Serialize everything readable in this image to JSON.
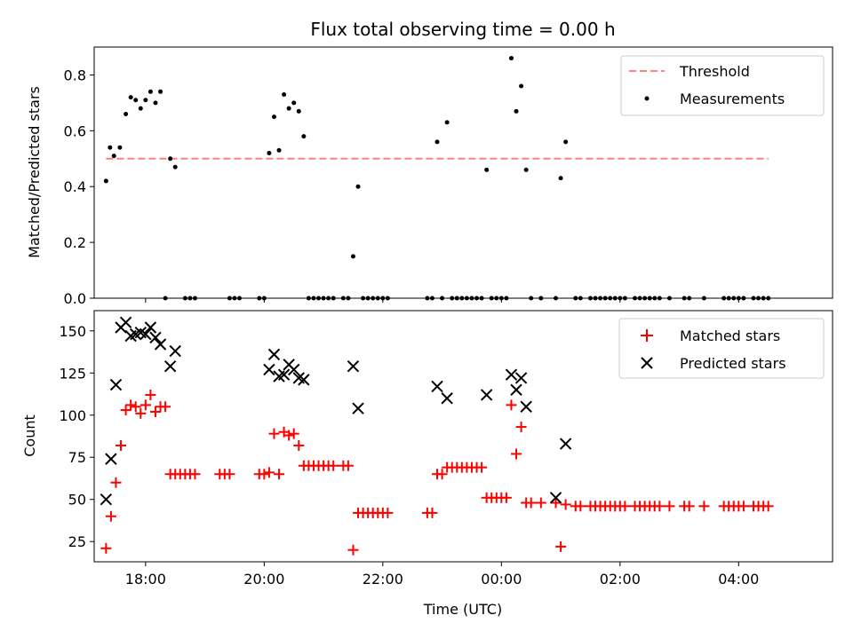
{
  "chart_data": [
    {
      "type": "scatter",
      "title": "Flux total observing time = 0.00 h",
      "xlabel": "",
      "ylabel": "Matched/Predicted stars",
      "xlim": [
        "17:08",
        "05:35"
      ],
      "ylim": [
        0,
        0.9
      ],
      "yticks": [
        "0.0",
        "0.2",
        "0.4",
        "0.6",
        "0.8"
      ],
      "legend_position": "top-right",
      "threshold": {
        "name": "Threshold",
        "value": 0.5,
        "x_range": [
          "17:20",
          "04:30"
        ],
        "color": "#ff7f7f",
        "style": "dashed"
      },
      "series": [
        {
          "name": "Measurements",
          "color": "#000000",
          "points": [
            [
              "17:20",
              0.42
            ],
            [
              "17:24",
              0.54
            ],
            [
              "17:28",
              0.51
            ],
            [
              "17:34",
              0.54
            ],
            [
              "17:40",
              0.66
            ],
            [
              "17:45",
              0.72
            ],
            [
              "17:50",
              0.71
            ],
            [
              "17:55",
              0.68
            ],
            [
              "18:00",
              0.71
            ],
            [
              "18:05",
              0.74
            ],
            [
              "18:10",
              0.7
            ],
            [
              "18:15",
              0.74
            ],
            [
              "18:20",
              0.0
            ],
            [
              "18:25",
              0.5
            ],
            [
              "18:30",
              0.47
            ],
            [
              "18:40",
              0.0
            ],
            [
              "18:45",
              0.0
            ],
            [
              "18:50",
              0.0
            ],
            [
              "19:25",
              0.0
            ],
            [
              "19:30",
              0.0
            ],
            [
              "19:35",
              0.0
            ],
            [
              "19:55",
              0.0
            ],
            [
              "20:00",
              0.0
            ],
            [
              "20:05",
              0.52
            ],
            [
              "20:10",
              0.65
            ],
            [
              "20:15",
              0.53
            ],
            [
              "20:20",
              0.73
            ],
            [
              "20:25",
              0.68
            ],
            [
              "20:30",
              0.7
            ],
            [
              "20:35",
              0.67
            ],
            [
              "20:40",
              0.58
            ],
            [
              "20:45",
              0.0
            ],
            [
              "20:50",
              0.0
            ],
            [
              "20:55",
              0.0
            ],
            [
              "21:00",
              0.0
            ],
            [
              "21:05",
              0.0
            ],
            [
              "21:10",
              0.0
            ],
            [
              "21:20",
              0.0
            ],
            [
              "21:25",
              0.0
            ],
            [
              "21:30",
              0.15
            ],
            [
              "21:35",
              0.4
            ],
            [
              "21:40",
              0.0
            ],
            [
              "21:45",
              0.0
            ],
            [
              "21:50",
              0.0
            ],
            [
              "21:55",
              0.0
            ],
            [
              "22:00",
              0.0
            ],
            [
              "22:05",
              0.0
            ],
            [
              "22:45",
              0.0
            ],
            [
              "22:50",
              0.0
            ],
            [
              "22:55",
              0.56
            ],
            [
              "23:00",
              0.0
            ],
            [
              "23:05",
              0.63
            ],
            [
              "23:10",
              0.0
            ],
            [
              "23:15",
              0.0
            ],
            [
              "23:20",
              0.0
            ],
            [
              "23:25",
              0.0
            ],
            [
              "23:30",
              0.0
            ],
            [
              "23:35",
              0.0
            ],
            [
              "23:40",
              0.0
            ],
            [
              "23:45",
              0.46
            ],
            [
              "23:50",
              0.0
            ],
            [
              "23:55",
              0.0
            ],
            [
              "00:00",
              0.0
            ],
            [
              "00:05",
              0.0
            ],
            [
              "00:10",
              0.86
            ],
            [
              "00:15",
              0.67
            ],
            [
              "00:20",
              0.76
            ],
            [
              "00:25",
              0.46
            ],
            [
              "00:30",
              0.0
            ],
            [
              "00:40",
              0.0
            ],
            [
              "00:55",
              0.0
            ],
            [
              "01:00",
              0.43
            ],
            [
              "01:05",
              0.56
            ],
            [
              "01:15",
              0.0
            ],
            [
              "01:20",
              0.0
            ],
            [
              "01:30",
              0.0
            ],
            [
              "01:35",
              0.0
            ],
            [
              "01:40",
              0.0
            ],
            [
              "01:45",
              0.0
            ],
            [
              "01:50",
              0.0
            ],
            [
              "01:55",
              0.0
            ],
            [
              "02:00",
              0.0
            ],
            [
              "02:05",
              0.0
            ],
            [
              "02:15",
              0.0
            ],
            [
              "02:20",
              0.0
            ],
            [
              "02:25",
              0.0
            ],
            [
              "02:30",
              0.0
            ],
            [
              "02:35",
              0.0
            ],
            [
              "02:40",
              0.0
            ],
            [
              "02:50",
              0.0
            ],
            [
              "03:05",
              0.0
            ],
            [
              "03:10",
              0.0
            ],
            [
              "03:25",
              0.0
            ],
            [
              "03:45",
              0.0
            ],
            [
              "03:50",
              0.0
            ],
            [
              "03:55",
              0.0
            ],
            [
              "04:00",
              0.0
            ],
            [
              "04:05",
              0.0
            ],
            [
              "04:15",
              0.0
            ],
            [
              "04:20",
              0.0
            ],
            [
              "04:25",
              0.0
            ],
            [
              "04:30",
              0.0
            ]
          ]
        }
      ]
    },
    {
      "type": "scatter",
      "title": "",
      "xlabel": "Time (UTC)",
      "ylabel": "Count",
      "xlim": [
        "17:08",
        "05:35"
      ],
      "ylim": [
        13,
        162
      ],
      "yticks": [
        "25",
        "50",
        "75",
        "100",
        "125",
        "150"
      ],
      "xticks": [
        "18:00",
        "20:00",
        "22:00",
        "00:00",
        "02:00",
        "04:00"
      ],
      "legend_position": "top-right",
      "series": [
        {
          "name": "Matched stars",
          "color": "#ff0000",
          "marker": "plus",
          "points": [
            [
              "17:20",
              21
            ],
            [
              "17:25",
              40
            ],
            [
              "17:30",
              60
            ],
            [
              "17:35",
              82
            ],
            [
              "17:40",
              103
            ],
            [
              "17:45",
              106
            ],
            [
              "17:50",
              105
            ],
            [
              "17:55",
              101
            ],
            [
              "18:00",
              106
            ],
            [
              "18:05",
              112
            ],
            [
              "18:10",
              102
            ],
            [
              "18:15",
              105
            ],
            [
              "18:20",
              105
            ],
            [
              "18:25",
              65
            ],
            [
              "18:30",
              65
            ],
            [
              "18:35",
              65
            ],
            [
              "18:40",
              65
            ],
            [
              "18:45",
              65
            ],
            [
              "18:50",
              65
            ],
            [
              "19:15",
              65
            ],
            [
              "19:20",
              65
            ],
            [
              "19:25",
              65
            ],
            [
              "19:55",
              65
            ],
            [
              "20:00",
              65
            ],
            [
              "20:05",
              66
            ],
            [
              "20:10",
              89
            ],
            [
              "20:15",
              65
            ],
            [
              "20:20",
              90
            ],
            [
              "20:25",
              88
            ],
            [
              "20:30",
              89
            ],
            [
              "20:35",
              82
            ],
            [
              "20:40",
              70
            ],
            [
              "20:45",
              70
            ],
            [
              "20:50",
              70
            ],
            [
              "20:55",
              70
            ],
            [
              "21:00",
              70
            ],
            [
              "21:05",
              70
            ],
            [
              "21:10",
              70
            ],
            [
              "21:20",
              70
            ],
            [
              "21:25",
              70
            ],
            [
              "21:30",
              20
            ],
            [
              "21:35",
              42
            ],
            [
              "21:40",
              42
            ],
            [
              "21:45",
              42
            ],
            [
              "21:50",
              42
            ],
            [
              "21:55",
              42
            ],
            [
              "22:00",
              42
            ],
            [
              "22:05",
              42
            ],
            [
              "22:45",
              42
            ],
            [
              "22:50",
              42
            ],
            [
              "22:55",
              65
            ],
            [
              "23:00",
              65
            ],
            [
              "23:05",
              69
            ],
            [
              "23:10",
              69
            ],
            [
              "23:15",
              69
            ],
            [
              "23:20",
              69
            ],
            [
              "23:25",
              69
            ],
            [
              "23:30",
              69
            ],
            [
              "23:35",
              69
            ],
            [
              "23:40",
              69
            ],
            [
              "23:45",
              51
            ],
            [
              "23:50",
              51
            ],
            [
              "23:55",
              51
            ],
            [
              "00:00",
              51
            ],
            [
              "00:05",
              51
            ],
            [
              "00:10",
              106
            ],
            [
              "00:15",
              77
            ],
            [
              "00:20",
              93
            ],
            [
              "00:25",
              48
            ],
            [
              "00:30",
              48
            ],
            [
              "00:40",
              48
            ],
            [
              "00:55",
              48
            ],
            [
              "01:00",
              22
            ],
            [
              "01:05",
              47
            ],
            [
              "01:15",
              46
            ],
            [
              "01:20",
              46
            ],
            [
              "01:30",
              46
            ],
            [
              "01:35",
              46
            ],
            [
              "01:40",
              46
            ],
            [
              "01:45",
              46
            ],
            [
              "01:50",
              46
            ],
            [
              "01:55",
              46
            ],
            [
              "02:00",
              46
            ],
            [
              "02:05",
              46
            ],
            [
              "02:15",
              46
            ],
            [
              "02:20",
              46
            ],
            [
              "02:25",
              46
            ],
            [
              "02:30",
              46
            ],
            [
              "02:35",
              46
            ],
            [
              "02:40",
              46
            ],
            [
              "02:50",
              46
            ],
            [
              "03:05",
              46
            ],
            [
              "03:10",
              46
            ],
            [
              "03:25",
              46
            ],
            [
              "03:45",
              46
            ],
            [
              "03:50",
              46
            ],
            [
              "03:55",
              46
            ],
            [
              "04:00",
              46
            ],
            [
              "04:05",
              46
            ],
            [
              "04:15",
              46
            ],
            [
              "04:20",
              46
            ],
            [
              "04:25",
              46
            ],
            [
              "04:30",
              46
            ]
          ]
        },
        {
          "name": "Predicted stars",
          "color": "#000000",
          "marker": "x",
          "points": [
            [
              "17:20",
              50
            ],
            [
              "17:25",
              74
            ],
            [
              "17:30",
              118
            ],
            [
              "17:35",
              152
            ],
            [
              "17:40",
              155
            ],
            [
              "17:45",
              147
            ],
            [
              "17:50",
              148
            ],
            [
              "17:55",
              149
            ],
            [
              "18:00",
              148
            ],
            [
              "18:05",
              152
            ],
            [
              "18:10",
              146
            ],
            [
              "18:15",
              142
            ],
            [
              "18:25",
              129
            ],
            [
              "18:30",
              138
            ],
            [
              "20:05",
              127
            ],
            [
              "20:10",
              136
            ],
            [
              "20:15",
              123
            ],
            [
              "20:20",
              124
            ],
            [
              "20:25",
              130
            ],
            [
              "20:30",
              127
            ],
            [
              "20:35",
              122
            ],
            [
              "20:40",
              121
            ],
            [
              "21:30",
              129
            ],
            [
              "21:35",
              104
            ],
            [
              "22:55",
              117
            ],
            [
              "23:05",
              110
            ],
            [
              "23:45",
              112
            ],
            [
              "00:10",
              124
            ],
            [
              "00:15",
              115
            ],
            [
              "00:20",
              122
            ],
            [
              "00:25",
              105
            ],
            [
              "00:55",
              51
            ],
            [
              "01:05",
              83
            ]
          ]
        }
      ]
    }
  ]
}
